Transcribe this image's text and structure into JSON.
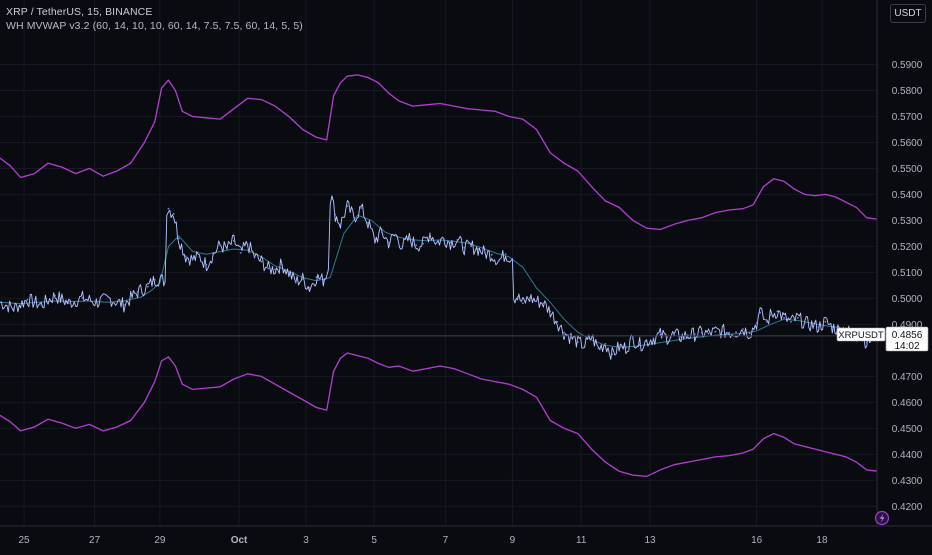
{
  "header": {
    "symbol_line": "XRP / TetherUS, 15, BINANCE",
    "indicator_line": "WH MVWAP v3.2 (60, 14, 10, 10, 60, 14, 7.5, 7.5, 60, 14, 5, 5)"
  },
  "price_scale": {
    "unit_label": "USDT"
  },
  "price_label": {
    "symbol": "XRPUSDT",
    "price": "0.4856",
    "countdown": "14:02"
  },
  "colors": {
    "background": "#0a0b11",
    "price": "#b7c6ff",
    "price_wick": "#6f86ff",
    "vwap": "#2f7a8c",
    "band": "#b13fd0",
    "grid": "#161923",
    "crosshair": "#3d4050",
    "settings_icon": "#9c3ed6"
  },
  "chart_data": {
    "type": "line",
    "title": "XRP / TetherUS, 15, BINANCE",
    "xlabel": "",
    "ylabel": "",
    "ylim": [
      0.4155,
      0.5975
    ],
    "y_ticks": [
      "0.5900",
      "0.5800",
      "0.5700",
      "0.5600",
      "0.5500",
      "0.5400",
      "0.5300",
      "0.5200",
      "0.5100",
      "0.5000",
      "0.4900",
      "0.4700",
      "0.4600",
      "0.4500",
      "0.4400",
      "0.4300",
      "0.4200"
    ],
    "x_ticks": [
      "25",
      "27",
      "29",
      "Oct",
      "3",
      "5",
      "7",
      "9",
      "11",
      "13",
      "16",
      "18"
    ],
    "x_tick_days": [
      -5.9,
      -3.85,
      -1.95,
      0.35,
      2.3,
      4.28,
      6.35,
      8.3,
      10.3,
      12.3,
      15.4,
      17.3
    ],
    "x_range_days": [
      -6.6,
      18.9
    ],
    "grid": false,
    "legend": "none",
    "current_price": 0.4856,
    "series": [
      {
        "name": "XRPUSDT",
        "x": [
          -6.6,
          -6.2,
          -5.8,
          -5.4,
          -5.0,
          -4.6,
          -4.2,
          -3.8,
          -3.4,
          -3.0,
          -2.6,
          -2.3,
          -2.1,
          -1.95,
          -1.8,
          -1.7,
          -1.55,
          -1.4,
          -1.2,
          -1.0,
          -0.8,
          -0.6,
          -0.4,
          -0.2,
          0.0,
          0.2,
          0.4,
          0.6,
          0.8,
          1.0,
          1.2,
          1.4,
          1.6,
          1.8,
          2.0,
          2.2,
          2.4,
          2.6,
          2.8,
          2.95,
          3.05,
          3.15,
          3.3,
          3.5,
          3.7,
          3.9,
          4.1,
          4.3,
          4.5,
          4.7,
          4.9,
          5.1,
          5.3,
          5.5,
          5.7,
          5.9,
          6.1,
          6.3,
          6.5,
          6.7,
          6.9,
          7.1,
          7.3,
          7.5,
          7.7,
          7.9,
          8.1,
          8.3,
          8.45,
          8.6,
          8.8,
          9.0,
          9.2,
          9.4,
          9.6,
          9.8,
          10.0,
          10.2,
          10.4,
          10.6,
          10.8,
          11.0,
          11.2,
          11.4,
          11.6,
          11.8,
          12.0,
          12.2,
          12.4,
          12.6,
          12.8,
          13.0,
          13.2,
          13.4,
          13.6,
          13.8,
          14.0,
          14.2,
          14.4,
          14.6,
          14.8,
          15.0,
          15.2,
          15.4,
          15.5,
          15.6,
          15.7,
          15.8,
          16.0,
          16.2,
          16.4,
          16.6,
          16.8,
          17.0,
          17.2,
          17.4,
          17.6,
          17.8,
          18.0,
          18.2,
          18.4,
          18.6,
          18.9
        ],
        "values": [
          0.4985,
          0.4962,
          0.4995,
          0.4975,
          0.501,
          0.4982,
          0.5002,
          0.4985,
          0.4998,
          0.4975,
          0.5025,
          0.5045,
          0.5072,
          0.5075,
          0.5065,
          0.5345,
          0.5325,
          0.523,
          0.5162,
          0.515,
          0.516,
          0.513,
          0.517,
          0.5205,
          0.519,
          0.5222,
          0.5175,
          0.5208,
          0.5162,
          0.5142,
          0.5115,
          0.5112,
          0.513,
          0.5098,
          0.5065,
          0.5075,
          0.504,
          0.5082,
          0.507,
          0.511,
          0.5382,
          0.5322,
          0.5285,
          0.5355,
          0.531,
          0.5348,
          0.529,
          0.5225,
          0.5255,
          0.5215,
          0.5245,
          0.52,
          0.523,
          0.5205,
          0.521,
          0.525,
          0.5215,
          0.523,
          0.5215,
          0.5225,
          0.5195,
          0.52,
          0.519,
          0.5175,
          0.5168,
          0.5145,
          0.517,
          0.5152,
          0.5005,
          0.4982,
          0.5002,
          0.499,
          0.4982,
          0.495,
          0.491,
          0.4868,
          0.485,
          0.4832,
          0.4818,
          0.4852,
          0.4808,
          0.4825,
          0.4785,
          0.4812,
          0.481,
          0.4845,
          0.4822,
          0.4835,
          0.4846,
          0.486,
          0.485,
          0.486,
          0.4852,
          0.4858,
          0.4862,
          0.4868,
          0.4865,
          0.4872,
          0.4874,
          0.4868,
          0.487,
          0.4882,
          0.4866,
          0.4905,
          0.4945,
          0.4925,
          0.491,
          0.4935,
          0.495,
          0.4925,
          0.491,
          0.4925,
          0.4905,
          0.4898,
          0.489,
          0.491,
          0.489,
          0.4878,
          0.4885,
          0.485,
          0.4862,
          0.483,
          0.4856
        ]
      },
      {
        "name": "",
        "x": [
          -6.6,
          -6.0,
          -5.5,
          -5.0,
          -4.5,
          -4.0,
          -3.5,
          -3.0,
          -2.5,
          -2.2,
          -1.95,
          -1.7,
          -1.4,
          -1.0,
          -0.6,
          -0.2,
          0.2,
          0.6,
          1.0,
          1.4,
          1.8,
          2.2,
          2.6,
          3.0,
          3.4,
          3.8,
          4.2,
          4.6,
          5.0,
          5.4,
          5.8,
          6.2,
          6.6,
          7.0,
          7.4,
          7.8,
          8.2,
          8.6,
          9.0,
          9.4,
          9.8,
          10.2,
          10.6,
          11.0,
          11.4,
          11.8,
          12.2,
          12.6,
          13.0,
          13.4,
          13.8,
          14.2,
          14.6,
          15.0,
          15.4,
          15.8,
          16.2,
          16.6,
          17.0,
          17.4,
          17.8,
          18.2,
          18.6,
          18.9
        ],
        "values": [
          0.4985,
          0.498,
          0.4985,
          0.499,
          0.4988,
          0.499,
          0.4985,
          0.499,
          0.5005,
          0.503,
          0.506,
          0.52,
          0.524,
          0.518,
          0.517,
          0.518,
          0.519,
          0.5185,
          0.516,
          0.5125,
          0.5105,
          0.508,
          0.5068,
          0.508,
          0.525,
          0.532,
          0.53,
          0.5255,
          0.5235,
          0.5225,
          0.5222,
          0.5225,
          0.522,
          0.5212,
          0.5195,
          0.5175,
          0.516,
          0.512,
          0.504,
          0.4985,
          0.492,
          0.487,
          0.484,
          0.482,
          0.4812,
          0.4815,
          0.4822,
          0.483,
          0.4838,
          0.4846,
          0.4852,
          0.4858,
          0.4862,
          0.4866,
          0.4875,
          0.49,
          0.492,
          0.4915,
          0.4905,
          0.4895,
          0.4888,
          0.4875,
          0.4862,
          0.4857
        ]
      },
      {
        "name": "",
        "x": [
          -6.6,
          -6.3,
          -6.0,
          -5.6,
          -5.2,
          -4.8,
          -4.4,
          -4.0,
          -3.6,
          -3.2,
          -2.8,
          -2.4,
          -2.1,
          -1.9,
          -1.7,
          -1.5,
          -1.3,
          -1.0,
          -0.6,
          -0.2,
          0.2,
          0.6,
          1.0,
          1.4,
          1.8,
          2.2,
          2.6,
          2.9,
          3.1,
          3.3,
          3.5,
          3.8,
          4.1,
          4.4,
          4.7,
          5.0,
          5.4,
          5.8,
          6.2,
          6.6,
          7.0,
          7.4,
          7.8,
          8.2,
          8.6,
          9.0,
          9.4,
          9.8,
          10.2,
          10.6,
          11.0,
          11.4,
          11.8,
          12.2,
          12.6,
          13.0,
          13.4,
          13.8,
          14.2,
          14.6,
          15.0,
          15.3,
          15.6,
          15.9,
          16.2,
          16.5,
          16.8,
          17.1,
          17.4,
          17.7,
          18.0,
          18.3,
          18.6,
          18.9
        ],
        "values": [
          0.554,
          0.551,
          0.5465,
          0.548,
          0.552,
          0.5505,
          0.548,
          0.55,
          0.547,
          0.549,
          0.552,
          0.56,
          0.568,
          0.581,
          0.584,
          0.58,
          0.572,
          0.57,
          0.5695,
          0.569,
          0.573,
          0.577,
          0.5765,
          0.574,
          0.57,
          0.565,
          0.562,
          0.561,
          0.578,
          0.583,
          0.5855,
          0.586,
          0.585,
          0.583,
          0.579,
          0.576,
          0.574,
          0.5745,
          0.575,
          0.574,
          0.573,
          0.5725,
          0.572,
          0.57,
          0.569,
          0.565,
          0.556,
          0.552,
          0.549,
          0.543,
          0.5375,
          0.535,
          0.53,
          0.527,
          0.5265,
          0.5285,
          0.53,
          0.531,
          0.533,
          0.534,
          0.5345,
          0.536,
          0.543,
          0.546,
          0.545,
          0.542,
          0.54,
          0.5395,
          0.54,
          0.539,
          0.537,
          0.535,
          0.531,
          0.5305
        ]
      },
      {
        "name": "",
        "x": [
          -6.6,
          -6.3,
          -6.0,
          -5.6,
          -5.2,
          -4.8,
          -4.4,
          -4.0,
          -3.6,
          -3.2,
          -2.8,
          -2.4,
          -2.1,
          -1.9,
          -1.7,
          -1.5,
          -1.3,
          -1.0,
          -0.6,
          -0.2,
          0.2,
          0.6,
          1.0,
          1.4,
          1.8,
          2.2,
          2.6,
          2.9,
          3.1,
          3.3,
          3.5,
          3.8,
          4.1,
          4.4,
          4.7,
          5.0,
          5.4,
          5.8,
          6.2,
          6.6,
          7.0,
          7.4,
          7.8,
          8.2,
          8.6,
          9.0,
          9.4,
          9.8,
          10.2,
          10.6,
          11.0,
          11.4,
          11.8,
          12.2,
          12.6,
          13.0,
          13.4,
          13.8,
          14.2,
          14.6,
          15.0,
          15.3,
          15.6,
          15.9,
          16.2,
          16.5,
          16.8,
          17.1,
          17.4,
          17.7,
          18.0,
          18.3,
          18.6,
          18.9
        ],
        "values": [
          0.455,
          0.4525,
          0.449,
          0.4505,
          0.4535,
          0.452,
          0.45,
          0.4515,
          0.449,
          0.4505,
          0.453,
          0.46,
          0.468,
          0.476,
          0.4775,
          0.474,
          0.467,
          0.465,
          0.4655,
          0.466,
          0.469,
          0.471,
          0.47,
          0.467,
          0.464,
          0.461,
          0.458,
          0.457,
          0.472,
          0.477,
          0.479,
          0.478,
          0.477,
          0.475,
          0.4735,
          0.474,
          0.472,
          0.473,
          0.474,
          0.473,
          0.471,
          0.469,
          0.468,
          0.467,
          0.465,
          0.462,
          0.453,
          0.45,
          0.448,
          0.442,
          0.437,
          0.4335,
          0.432,
          0.4315,
          0.434,
          0.436,
          0.437,
          0.438,
          0.439,
          0.4395,
          0.4405,
          0.442,
          0.446,
          0.448,
          0.4465,
          0.444,
          0.443,
          0.442,
          0.441,
          0.44,
          0.439,
          0.437,
          0.434,
          0.4335
        ]
      }
    ]
  }
}
